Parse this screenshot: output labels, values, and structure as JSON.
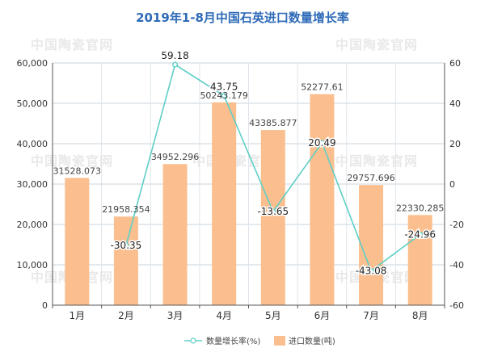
{
  "watermark": "中国陶瓷官网",
  "chart_data": {
    "type": "bar",
    "title": "2019年1-8月中国石英进口数量增长率",
    "categories": [
      "1月",
      "2月",
      "3月",
      "4月",
      "5月",
      "6月",
      "7月",
      "8月"
    ],
    "series": [
      {
        "name": "进口数量(吨)",
        "type": "bar",
        "axis": "left",
        "color": "#fbbf8f",
        "values": [
          31528.073,
          21958.354,
          34952.296,
          50243.179,
          43385.877,
          52277.61,
          29757.696,
          22330.285
        ],
        "labels": [
          "31528.073",
          "21958.354",
          "34952.296",
          "50243.179",
          "43385.877",
          "52277.61",
          "29757.696",
          "22330.285"
        ]
      },
      {
        "name": "数量增长率(%)",
        "type": "line",
        "axis": "right",
        "color": "#5ecfc6",
        "values": [
          null,
          -30.35,
          59.18,
          43.75,
          -13.65,
          20.49,
          -43.08,
          -24.96
        ],
        "labels": [
          "",
          "-30.35",
          "59.18",
          "43.75",
          "-13.65",
          "20.49",
          "-43.08",
          "-24.96"
        ]
      }
    ],
    "y_left": {
      "min": 0,
      "max": 60000,
      "step": 10000,
      "ticks": [
        "0",
        "10,000",
        "20,000",
        "30,000",
        "40,000",
        "50,000",
        "60,000"
      ]
    },
    "y_right": {
      "min": -60,
      "max": 60,
      "step": 20,
      "ticks": [
        "-60",
        "-40",
        "-20",
        "0",
        "20",
        "40",
        "60"
      ]
    },
    "grid": true,
    "legend_position": "bottom-right"
  }
}
